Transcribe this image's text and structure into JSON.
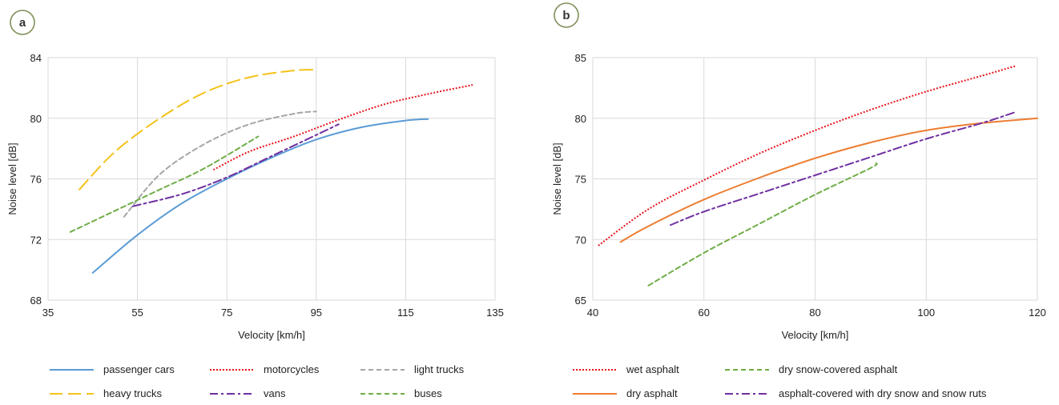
{
  "chart_data": [
    {
      "panel_label": "a",
      "type": "line",
      "xlabel": "Velocity [km/h]",
      "ylabel": "Noise level [dB]",
      "xlim": [
        35,
        135
      ],
      "ylim": [
        68,
        84
      ],
      "xticks": [
        35,
        55,
        75,
        95,
        115,
        135
      ],
      "yticks": [
        68,
        72,
        76,
        80,
        84
      ],
      "grid": true,
      "legend_position": "bottom",
      "series": [
        {
          "name": "passenger cars",
          "color": "#5b9bd5",
          "style": "solid",
          "x": [
            45,
            55,
            65,
            75,
            85,
            95,
            105,
            115,
            120
          ],
          "y": [
            69.8,
            72.3,
            74.4,
            76.0,
            77.4,
            78.6,
            79.4,
            79.85,
            79.95
          ]
        },
        {
          "name": "motorcycles",
          "color": "#e8131b",
          "style": "dotted",
          "x": [
            72,
            80,
            90,
            100,
            110,
            120,
            130
          ],
          "y": [
            76.6,
            77.8,
            78.8,
            79.9,
            80.9,
            81.6,
            82.2
          ]
        },
        {
          "name": "light trucks",
          "color": "#a6a6a6",
          "style": "dashed",
          "x": [
            52,
            60,
            70,
            80,
            90,
            95
          ],
          "y": [
            73.5,
            76.3,
            78.3,
            79.6,
            80.3,
            80.45
          ]
        },
        {
          "name": "heavy trucks",
          "color": "#f5c21b",
          "style": "longdash",
          "x": [
            42,
            50,
            60,
            70,
            80,
            90,
            95
          ],
          "y": [
            75.3,
            77.8,
            80.0,
            81.7,
            82.7,
            83.15,
            83.2
          ]
        },
        {
          "name": "vans",
          "color": "#7030a0",
          "style": "dashdot",
          "x": [
            54,
            65,
            75,
            85,
            95,
            100
          ],
          "y": [
            74.2,
            75.0,
            76.1,
            77.5,
            78.9,
            79.6
          ]
        },
        {
          "name": "buses",
          "color": "#70ad47",
          "style": "dashed",
          "x": [
            40,
            50,
            60,
            70,
            82
          ],
          "y": [
            72.5,
            73.9,
            75.3,
            76.7,
            78.8
          ]
        }
      ]
    },
    {
      "panel_label": "b",
      "type": "line",
      "xlabel": "Velocity [km/h]",
      "ylabel": "Noise level [dB]",
      "xlim": [
        40,
        120
      ],
      "ylim": [
        65,
        85
      ],
      "xticks": [
        40,
        60,
        80,
        100,
        120
      ],
      "yticks": [
        65,
        70,
        75,
        80,
        85
      ],
      "grid": true,
      "legend_position": "bottom",
      "series": [
        {
          "name": "wet asphalt",
          "color": "#e8131b",
          "style": "dotted",
          "x": [
            41,
            50,
            60,
            70,
            80,
            90,
            100,
            110,
            116
          ],
          "y": [
            69.5,
            72.5,
            74.9,
            77.1,
            79.0,
            80.7,
            82.2,
            83.5,
            84.3
          ]
        },
        {
          "name": "dry snow-covered asphalt",
          "color": "#70ad47",
          "style": "dashed",
          "x": [
            50,
            60,
            70,
            80,
            90,
            91
          ],
          "y": [
            66.2,
            68.9,
            71.3,
            73.7,
            75.9,
            76.3
          ]
        },
        {
          "name": "dry asphalt",
          "color": "#ed7d31",
          "style": "solid",
          "x": [
            45,
            50,
            60,
            70,
            80,
            90,
            100,
            110,
            120
          ],
          "y": [
            69.8,
            71.1,
            73.3,
            75.1,
            76.7,
            78.0,
            79.0,
            79.6,
            80.0
          ]
        },
        {
          "name": "asphalt-covered with dry snow and snow ruts",
          "color": "#7030a0",
          "style": "dashdot",
          "x": [
            54,
            60,
            70,
            80,
            90,
            100,
            110,
            116
          ],
          "y": [
            71.2,
            72.3,
            73.8,
            75.3,
            76.8,
            78.3,
            79.6,
            80.5
          ]
        }
      ]
    }
  ]
}
